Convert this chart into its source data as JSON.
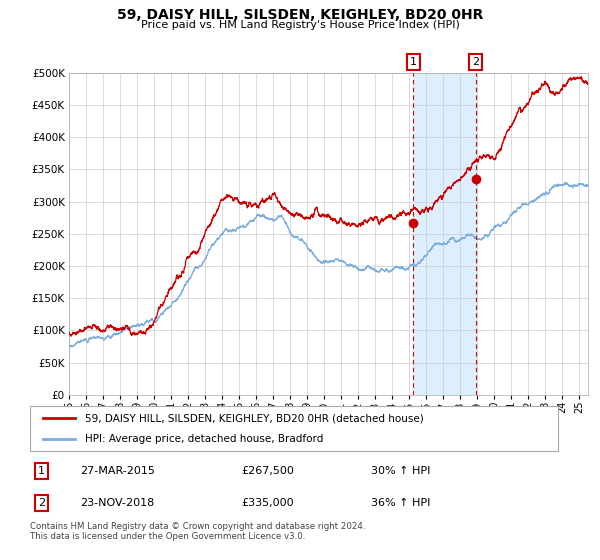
{
  "title": "59, DAISY HILL, SILSDEN, KEIGHLEY, BD20 0HR",
  "subtitle": "Price paid vs. HM Land Registry's House Price Index (HPI)",
  "legend_line1": "59, DAISY HILL, SILSDEN, KEIGHLEY, BD20 0HR (detached house)",
  "legend_line2": "HPI: Average price, detached house, Bradford",
  "annotation1_date": "27-MAR-2015",
  "annotation1_price": "£267,500",
  "annotation1_hpi": "30% ↑ HPI",
  "annotation2_date": "23-NOV-2018",
  "annotation2_price": "£335,000",
  "annotation2_hpi": "36% ↑ HPI",
  "footer": "Contains HM Land Registry data © Crown copyright and database right 2024.\nThis data is licensed under the Open Government Licence v3.0.",
  "sale1_year": 2015.23,
  "sale1_value": 267500,
  "sale2_year": 2018.9,
  "sale2_value": 335000,
  "red_color": "#cc0000",
  "blue_color": "#7aaddc",
  "background_color": "#ffffff",
  "shading_color": "#ddeeff",
  "grid_color": "#cccccc",
  "ylim_max": 500000,
  "xlim_start": 1995,
  "xlim_end": 2025.5,
  "year_ticks": [
    1995,
    1996,
    1997,
    1998,
    1999,
    2000,
    2001,
    2002,
    2003,
    2004,
    2005,
    2006,
    2007,
    2008,
    2009,
    2010,
    2011,
    2012,
    2013,
    2014,
    2015,
    2016,
    2017,
    2018,
    2019,
    2020,
    2021,
    2022,
    2023,
    2024,
    2025
  ]
}
